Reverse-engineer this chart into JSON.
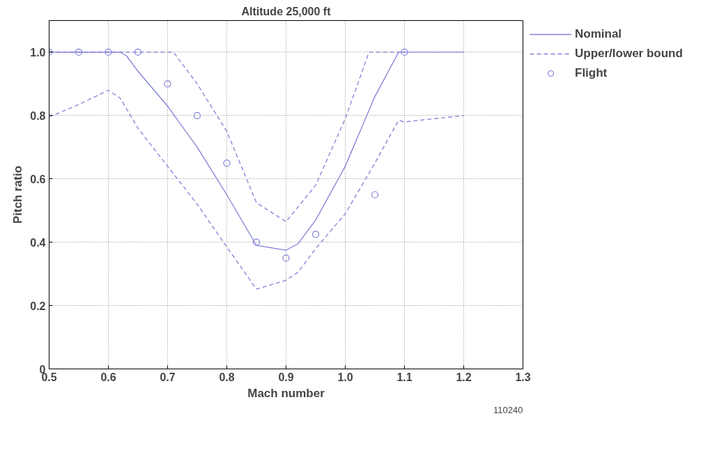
{
  "chart_data": {
    "type": "line",
    "title": "Altitude 25,000 ft",
    "xlabel": "Mach number",
    "ylabel": "Pitch ratio",
    "xlim": [
      0.5,
      1.3
    ],
    "xticks": [
      0.5,
      0.6,
      0.7,
      0.8,
      0.9,
      {
        "value": 1.0,
        "label": "1.0"
      },
      1.1,
      1.2,
      1.3
    ],
    "ylim": [
      0,
      1.1
    ],
    "yticks": [
      0,
      0.2,
      0.4,
      0.6,
      0.8,
      {
        "value": 1.0,
        "label": "1.0"
      }
    ],
    "grid": true,
    "legend": "top right",
    "annotations": [
      "110240"
    ],
    "series": [
      {
        "name": "Nominal",
        "line_style": "solid",
        "color": "#8080d8",
        "x": [
          0.5,
          0.62,
          0.63,
          0.65,
          0.7,
          0.75,
          0.8,
          0.85,
          0.9,
          0.92,
          0.95,
          1.0,
          1.05,
          1.09,
          1.2
        ],
        "values": [
          1.0,
          1.0,
          0.99,
          0.94,
          0.83,
          0.7,
          0.55,
          0.39,
          0.375,
          0.395,
          0.47,
          0.64,
          0.86,
          1.0,
          1.0
        ]
      },
      {
        "name": "Upper/lower bound",
        "line_style": "dashed",
        "color": "#8080d8",
        "x": [
          0.5,
          0.71,
          0.75,
          0.8,
          0.85,
          0.9,
          0.95,
          1.0,
          1.04,
          1.1
        ],
        "values": [
          1.0,
          1.0,
          0.9,
          0.75,
          0.525,
          0.465,
          0.58,
          0.79,
          1.0,
          1.0
        ]
      },
      {
        "line_style": "dashed",
        "color": "#8080d8",
        "x": [
          0.5,
          0.55,
          0.6,
          0.62,
          0.65,
          0.7,
          0.75,
          0.8,
          0.85,
          0.9,
          0.92,
          0.95,
          1.0,
          1.05,
          1.09,
          1.1,
          1.2
        ],
        "values": [
          0.795,
          0.835,
          0.88,
          0.855,
          0.76,
          0.64,
          0.52,
          0.385,
          0.252,
          0.28,
          0.305,
          0.38,
          0.49,
          0.65,
          0.785,
          0.78,
          0.8
        ]
      },
      {
        "name": "Flight",
        "type": "scatter",
        "marker": "circle",
        "color": "#8080d8",
        "x": [
          0.5,
          0.55,
          0.6,
          0.65,
          0.7,
          0.75,
          0.8,
          0.85,
          0.9,
          0.95,
          1.05,
          1.1
        ],
        "values": [
          1.0,
          1.0,
          1.0,
          1.0,
          0.9,
          0.8,
          0.65,
          0.4,
          0.35,
          0.425,
          0.55,
          1.0
        ]
      }
    ]
  }
}
